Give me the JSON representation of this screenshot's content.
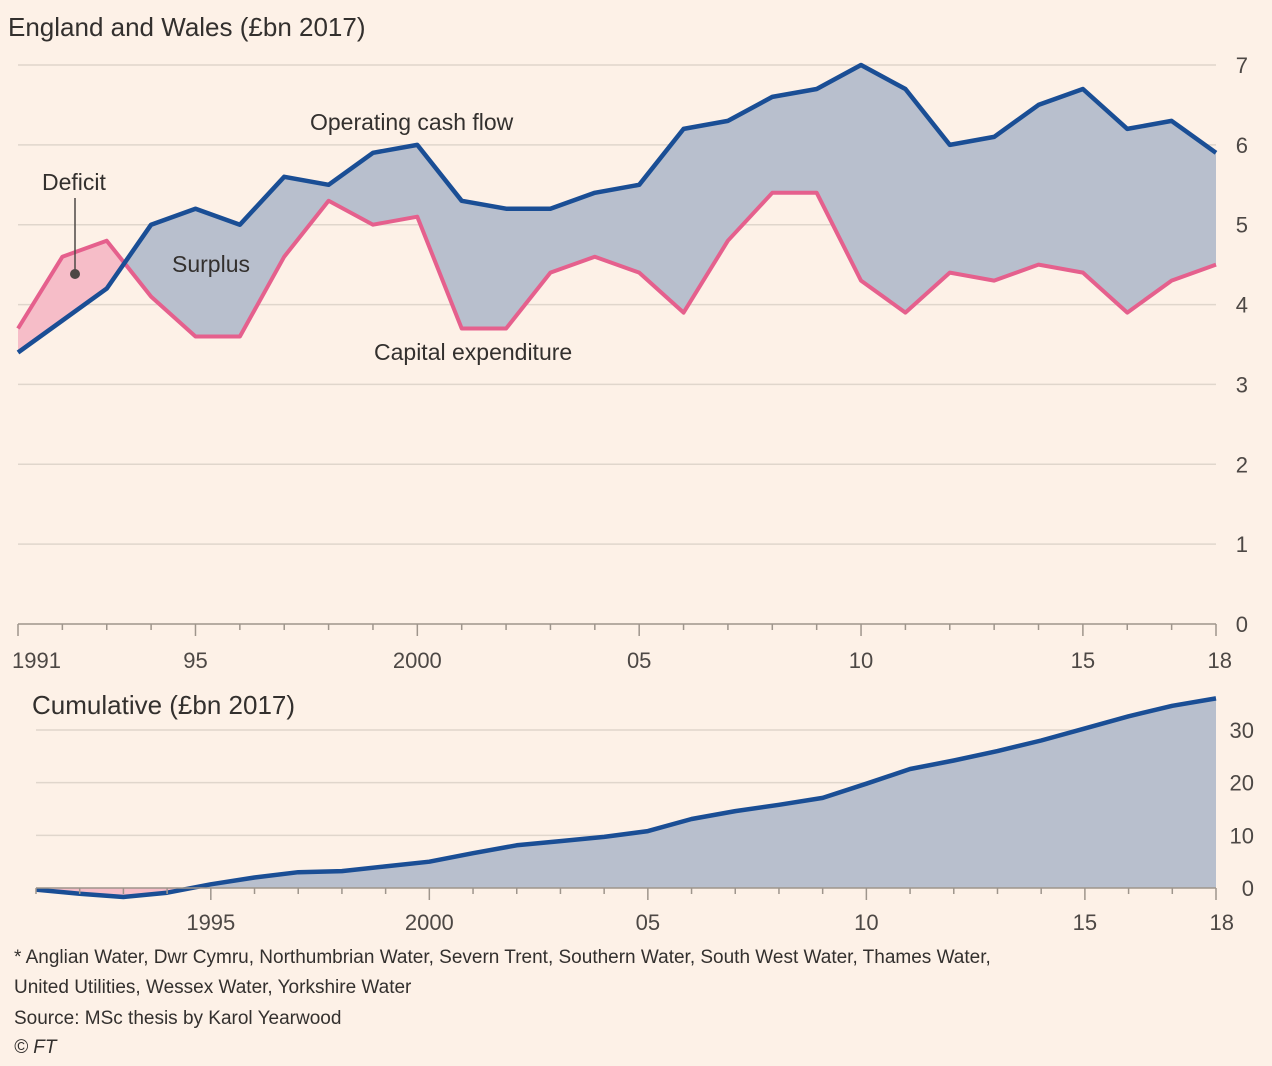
{
  "colors": {
    "background": "#fdf1e7",
    "operating": "#1a4e95",
    "capex": "#e5608d",
    "surplus_fill": "#b8bfcd",
    "deficit_fill": "#f6bdc8"
  },
  "chart_data": [
    {
      "type": "line",
      "title": "England and Wales (£bn 2017)",
      "x": [
        1991,
        1992,
        1993,
        1994,
        1995,
        1996,
        1997,
        1998,
        1999,
        2000,
        2001,
        2002,
        2003,
        2004,
        2005,
        2006,
        2007,
        2008,
        2009,
        2010,
        2011,
        2012,
        2013,
        2014,
        2015,
        2016,
        2017,
        2018
      ],
      "x_tick_values": [
        1991,
        1995,
        2000,
        2005,
        2010,
        2015,
        2018
      ],
      "x_tick_labels": [
        "1991",
        "95",
        "2000",
        "05",
        "10",
        "15",
        "18"
      ],
      "y_tick_values": [
        0,
        1,
        2,
        3,
        4,
        5,
        6,
        7
      ],
      "y_tick_labels": [
        "0",
        "1",
        "2",
        "3",
        "4",
        "5",
        "6",
        "7"
      ],
      "ylim": [
        0,
        7
      ],
      "series": [
        {
          "name": "Operating cash flow",
          "values": [
            3.4,
            3.8,
            4.2,
            5.0,
            5.2,
            5.0,
            5.6,
            5.5,
            5.9,
            6.0,
            5.3,
            5.2,
            5.2,
            5.4,
            5.5,
            6.2,
            6.3,
            6.6,
            6.7,
            7.0,
            6.7,
            6.0,
            6.1,
            6.5,
            6.7,
            6.2,
            6.3,
            5.9
          ]
        },
        {
          "name": "Capital expenditure",
          "values": [
            3.7,
            4.6,
            4.8,
            4.1,
            3.6,
            3.6,
            4.6,
            5.3,
            5.0,
            5.1,
            3.7,
            3.7,
            4.4,
            4.6,
            4.4,
            3.9,
            4.8,
            5.4,
            5.4,
            4.3,
            3.9,
            4.4,
            4.3,
            4.5,
            4.4,
            3.9,
            4.3,
            4.5
          ]
        }
      ],
      "annotations": [
        "Deficit",
        "Surplus"
      ],
      "grid": true
    },
    {
      "type": "area",
      "title": "Cumulative (£bn 2017)",
      "x": [
        1991,
        1992,
        1993,
        1994,
        1995,
        1996,
        1997,
        1998,
        1999,
        2000,
        2001,
        2002,
        2003,
        2004,
        2005,
        2006,
        2007,
        2008,
        2009,
        2010,
        2011,
        2012,
        2013,
        2014,
        2015,
        2016,
        2017,
        2018
      ],
      "x_tick_values": [
        1995,
        2000,
        2005,
        2010,
        2015,
        2018
      ],
      "x_tick_labels": [
        "1995",
        "2000",
        "05",
        "10",
        "15",
        "18"
      ],
      "y_tick_values": [
        0,
        10,
        20,
        30
      ],
      "y_tick_labels": [
        "0",
        "10",
        "20",
        "30"
      ],
      "ylim": [
        -2,
        37
      ],
      "series": [
        {
          "values": [
            -0.3,
            -1.1,
            -1.7,
            -0.9,
            0.7,
            2.0,
            3.0,
            3.2,
            4.1,
            5.0,
            6.6,
            8.1,
            8.9,
            9.7,
            10.8,
            13.1,
            14.6,
            15.8,
            17.1,
            19.8,
            22.6,
            24.2,
            26.0,
            28.0,
            30.3,
            32.6,
            34.6,
            36.0
          ]
        }
      ],
      "grid": true
    }
  ],
  "footnote": {
    "line1": "* Anglian Water, Dwr Cymru, Northumbrian Water, Severn Trent, Southern Water, South West Water, Thames Water,",
    "line2": "United Utilities, Wessex Water, Yorkshire Water",
    "source": "Source: MSc thesis by Karol Yearwood",
    "credit": "© FT"
  }
}
